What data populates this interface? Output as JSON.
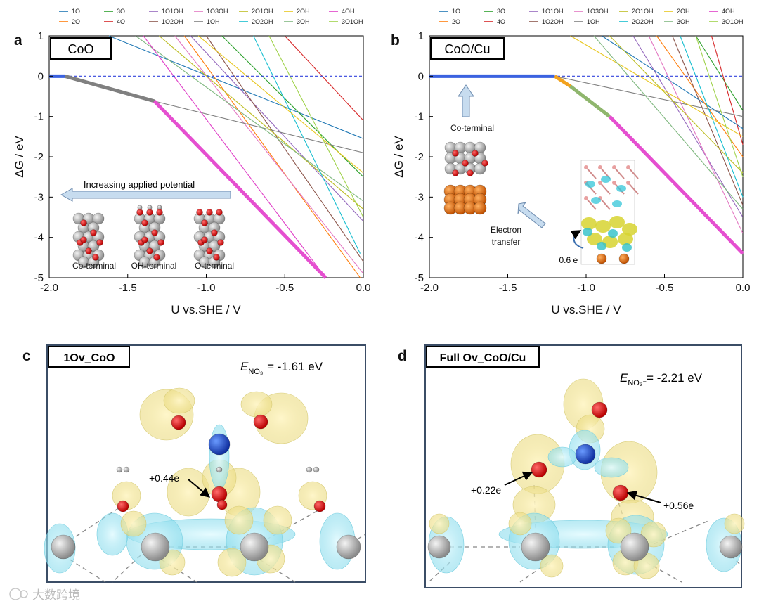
{
  "panel_labels": {
    "a": "a",
    "b": "b",
    "c": "c",
    "d": "d"
  },
  "insets": {
    "a_box": "CoO",
    "a_arrow": "Increasing applied potential",
    "a_structures": [
      "Co-terminal",
      "OH-terminal",
      "O-terminal"
    ],
    "b_box": "CoO/Cu",
    "b_terminal": "Co-terminal",
    "b_electron_line1": "Electron",
    "b_electron_line2": "transfer",
    "b_charge": "0.6 e⁻"
  },
  "panel_c": {
    "title": "1Ov_CoO",
    "energy_prefix": "E",
    "energy_sub": "NO₃⁻",
    "energy_value": "= -1.61 eV",
    "charge": "+0.44e"
  },
  "panel_d": {
    "title": "Full Ov_CoO/Cu",
    "energy_prefix": "E",
    "energy_sub": "NO₃⁻",
    "energy_value": "= -2.21 eV",
    "charge_left": "+0.22e",
    "charge_right": "+0.56e"
  },
  "watermark": "大数跨境",
  "colors": {
    "stable_blue": "#3b62e0",
    "stable_gray": "#808080",
    "stable_magenta": "#e54fd0",
    "stable_orange": "#f2a21e",
    "stable_green": "#8fb66d",
    "zero_line": "#3344dd"
  },
  "chart_data": [
    {
      "type": "line",
      "panel": "a",
      "title": "CoO",
      "xlabel": "U vs.SHE / V",
      "ylabel": "ΔG / eV",
      "xlim": [
        -2.0,
        0.0
      ],
      "ylim": [
        -5,
        1
      ],
      "xticks": [
        "-2.0",
        "-1.5",
        "-1.0",
        "-0.5",
        "0.0"
      ],
      "yticks": [
        "1",
        "0",
        "-1",
        "-2",
        "-3",
        "-4",
        "-5"
      ],
      "legend_position": "top",
      "legend": [
        {
          "name": "1O",
          "color": "#1f77b4"
        },
        {
          "name": "3O",
          "color": "#2ca02c"
        },
        {
          "name": "1O1OH",
          "color": "#9467bd"
        },
        {
          "name": "1O3OH",
          "color": "#e377c2"
        },
        {
          "name": "2O1OH",
          "color": "#bcbd22"
        },
        {
          "name": "2OH",
          "color": "#e8c61c"
        },
        {
          "name": "4OH",
          "color": "#e040c8"
        },
        {
          "name": "2O",
          "color": "#ff7f0e"
        },
        {
          "name": "4O",
          "color": "#d62728"
        },
        {
          "name": "1O2OH",
          "color": "#8c564b"
        },
        {
          "name": "1OH",
          "color": "#7f7f7f"
        },
        {
          "name": "2O2OH",
          "color": "#17becf"
        },
        {
          "name": "3OH",
          "color": "#80b880"
        },
        {
          "name": "3O1OH",
          "color": "#9fd24a"
        }
      ],
      "series": [
        {
          "name": "1O",
          "color": "#1f77b4",
          "x": [
            -1.62,
            0.0
          ],
          "y": [
            1.0,
            -1.55
          ]
        },
        {
          "name": "2O",
          "color": "#ff7f0e",
          "x": [
            -1.14,
            -0.02
          ],
          "y": [
            1.0,
            -5.0
          ]
        },
        {
          "name": "3O",
          "color": "#2ca02c",
          "x": [
            -0.9,
            0.0
          ],
          "y": [
            1.0,
            -2.5
          ]
        },
        {
          "name": "4O",
          "color": "#d62728",
          "x": [
            -0.5,
            0.0
          ],
          "y": [
            1.0,
            -1.1
          ]
        },
        {
          "name": "1O1OH",
          "color": "#9467bd",
          "x": [
            -1.1,
            0.0
          ],
          "y": [
            1.0,
            -3.6
          ]
        },
        {
          "name": "1O2OH",
          "color": "#8c564b",
          "x": [
            -1.0,
            0.0
          ],
          "y": [
            1.0,
            -4.6
          ]
        },
        {
          "name": "1O3OH",
          "color": "#e377c2",
          "x": [
            -1.2,
            0.0
          ],
          "y": [
            1.0,
            -4.9
          ]
        },
        {
          "name": "1OH",
          "color": "#7f7f7f",
          "x": [
            -1.33,
            0.0
          ],
          "y": [
            -0.62,
            -1.9
          ]
        },
        {
          "name": "2O1OH",
          "color": "#bcbd22",
          "x": [
            -1.3,
            0.0
          ],
          "y": [
            1.0,
            -3.3
          ]
        },
        {
          "name": "2O2OH",
          "color": "#17becf",
          "x": [
            -0.7,
            -0.02
          ],
          "y": [
            1.0,
            -4.4
          ]
        },
        {
          "name": "2OH",
          "color": "#e8c61c",
          "x": [
            -1.05,
            0.0
          ],
          "y": [
            1.0,
            -2.4
          ]
        },
        {
          "name": "3OH",
          "color": "#80b880",
          "x": [
            -1.45,
            0.0
          ],
          "y": [
            1.0,
            -3.1
          ]
        },
        {
          "name": "4OH",
          "color": "#e040c8",
          "x": [
            -1.4,
            -0.24
          ],
          "y": [
            1.0,
            -5.0
          ]
        },
        {
          "name": "3O1OH",
          "color": "#9fd24a",
          "x": [
            -0.6,
            0.0
          ],
          "y": [
            1.0,
            -3.5
          ]
        }
      ],
      "stability_path": [
        {
          "phase": "Co-terminal",
          "color": "#3b62e0",
          "x": [
            -2.0,
            -1.9
          ],
          "y": [
            0.0,
            0.0
          ]
        },
        {
          "phase": "1OH",
          "color": "#808080",
          "x": [
            -1.9,
            -1.33
          ],
          "y": [
            0.0,
            -0.62
          ]
        },
        {
          "phase": "4OH",
          "color": "#e54fd0",
          "x": [
            -1.33,
            -0.24
          ],
          "y": [
            -0.62,
            -5.0
          ]
        }
      ],
      "reference_line": {
        "y": 0,
        "style": "dashed"
      }
    },
    {
      "type": "line",
      "panel": "b",
      "title": "CoO/Cu",
      "xlabel": "U vs.SHE / V",
      "ylabel": "ΔG / eV",
      "xlim": [
        -2.0,
        0.0
      ],
      "ylim": [
        -5,
        1
      ],
      "xticks": [
        "-2.0",
        "-1.5",
        "-1.0",
        "-0.5",
        "0.0"
      ],
      "yticks": [
        "1",
        "0",
        "-1",
        "-2",
        "-3",
        "-4",
        "-5"
      ],
      "legend_position": "top",
      "legend": [
        {
          "name": "1O",
          "color": "#1f77b4"
        },
        {
          "name": "3O",
          "color": "#2ca02c"
        },
        {
          "name": "1O1OH",
          "color": "#9467bd"
        },
        {
          "name": "1O3OH",
          "color": "#e377c2"
        },
        {
          "name": "2O1OH",
          "color": "#bcbd22"
        },
        {
          "name": "2OH",
          "color": "#e8c61c"
        },
        {
          "name": "4OH",
          "color": "#e040c8"
        },
        {
          "name": "2O",
          "color": "#ff7f0e"
        },
        {
          "name": "4O",
          "color": "#d62728"
        },
        {
          "name": "1O2OH",
          "color": "#8c564b"
        },
        {
          "name": "1OH",
          "color": "#7f7f7f"
        },
        {
          "name": "2O2OH",
          "color": "#17becf"
        },
        {
          "name": "3OH",
          "color": "#80b880"
        },
        {
          "name": "3O1OH",
          "color": "#9fd24a"
        }
      ],
      "series": [
        {
          "name": "1O",
          "color": "#1f77b4",
          "x": [
            -0.9,
            0.0
          ],
          "y": [
            1.0,
            -1.3
          ]
        },
        {
          "name": "2O",
          "color": "#ff7f0e",
          "x": [
            -0.55,
            0.0
          ],
          "y": [
            1.0,
            -2.0
          ]
        },
        {
          "name": "3O",
          "color": "#2ca02c",
          "x": [
            -0.3,
            0.0
          ],
          "y": [
            1.0,
            -0.85
          ]
        },
        {
          "name": "4O",
          "color": "#d62728",
          "x": [
            -0.2,
            0.0
          ],
          "y": [
            1.0,
            -1.7
          ]
        },
        {
          "name": "1O1OH",
          "color": "#9467bd",
          "x": [
            -0.7,
            0.0
          ],
          "y": [
            1.0,
            -3.5
          ]
        },
        {
          "name": "1O2OH",
          "color": "#8c564b",
          "x": [
            -0.45,
            0.0
          ],
          "y": [
            1.0,
            -3.2
          ]
        },
        {
          "name": "1O3OH",
          "color": "#e377c2",
          "x": [
            -0.6,
            0.0
          ],
          "y": [
            1.0,
            -3.9
          ]
        },
        {
          "name": "1OH",
          "color": "#7f7f7f",
          "x": [
            -1.2,
            0.0
          ],
          "y": [
            0.0,
            -1.0
          ]
        },
        {
          "name": "2O1OH",
          "color": "#bcbd22",
          "x": [
            -0.85,
            0.0
          ],
          "y": [
            1.0,
            -2.4
          ]
        },
        {
          "name": "2O2OH",
          "color": "#17becf",
          "x": [
            -0.4,
            0.0
          ],
          "y": [
            1.0,
            -3.0
          ]
        },
        {
          "name": "2OH",
          "color": "#e8c61c",
          "x": [
            -1.1,
            0.0
          ],
          "y": [
            1.0,
            -1.5
          ]
        },
        {
          "name": "3OH",
          "color": "#80b880",
          "x": [
            -0.95,
            0.0
          ],
          "y": [
            1.0,
            -3.3
          ]
        },
        {
          "name": "4OH",
          "color": "#e040c8",
          "x": [
            -0.85,
            0.0
          ],
          "y": [
            -1.0,
            -4.4
          ]
        },
        {
          "name": "3O1OH",
          "color": "#9fd24a",
          "x": [
            -0.3,
            0.0
          ],
          "y": [
            1.0,
            -2.5
          ]
        }
      ],
      "stability_path": [
        {
          "phase": "Co-terminal",
          "color": "#3b62e0",
          "x": [
            -2.0,
            -1.2
          ],
          "y": [
            0.0,
            0.0
          ]
        },
        {
          "phase": "2OH",
          "color": "#f2a21e",
          "x": [
            -1.2,
            -1.1
          ],
          "y": [
            0.0,
            -0.25
          ]
        },
        {
          "phase": "3OH",
          "color": "#8fb66d",
          "x": [
            -1.1,
            -0.85
          ],
          "y": [
            -0.25,
            -1.0
          ]
        },
        {
          "phase": "4OH",
          "color": "#e54fd0",
          "x": [
            -0.85,
            0.0
          ],
          "y": [
            -1.0,
            -4.4
          ]
        }
      ],
      "reference_line": {
        "y": 0,
        "style": "dashed"
      }
    }
  ]
}
